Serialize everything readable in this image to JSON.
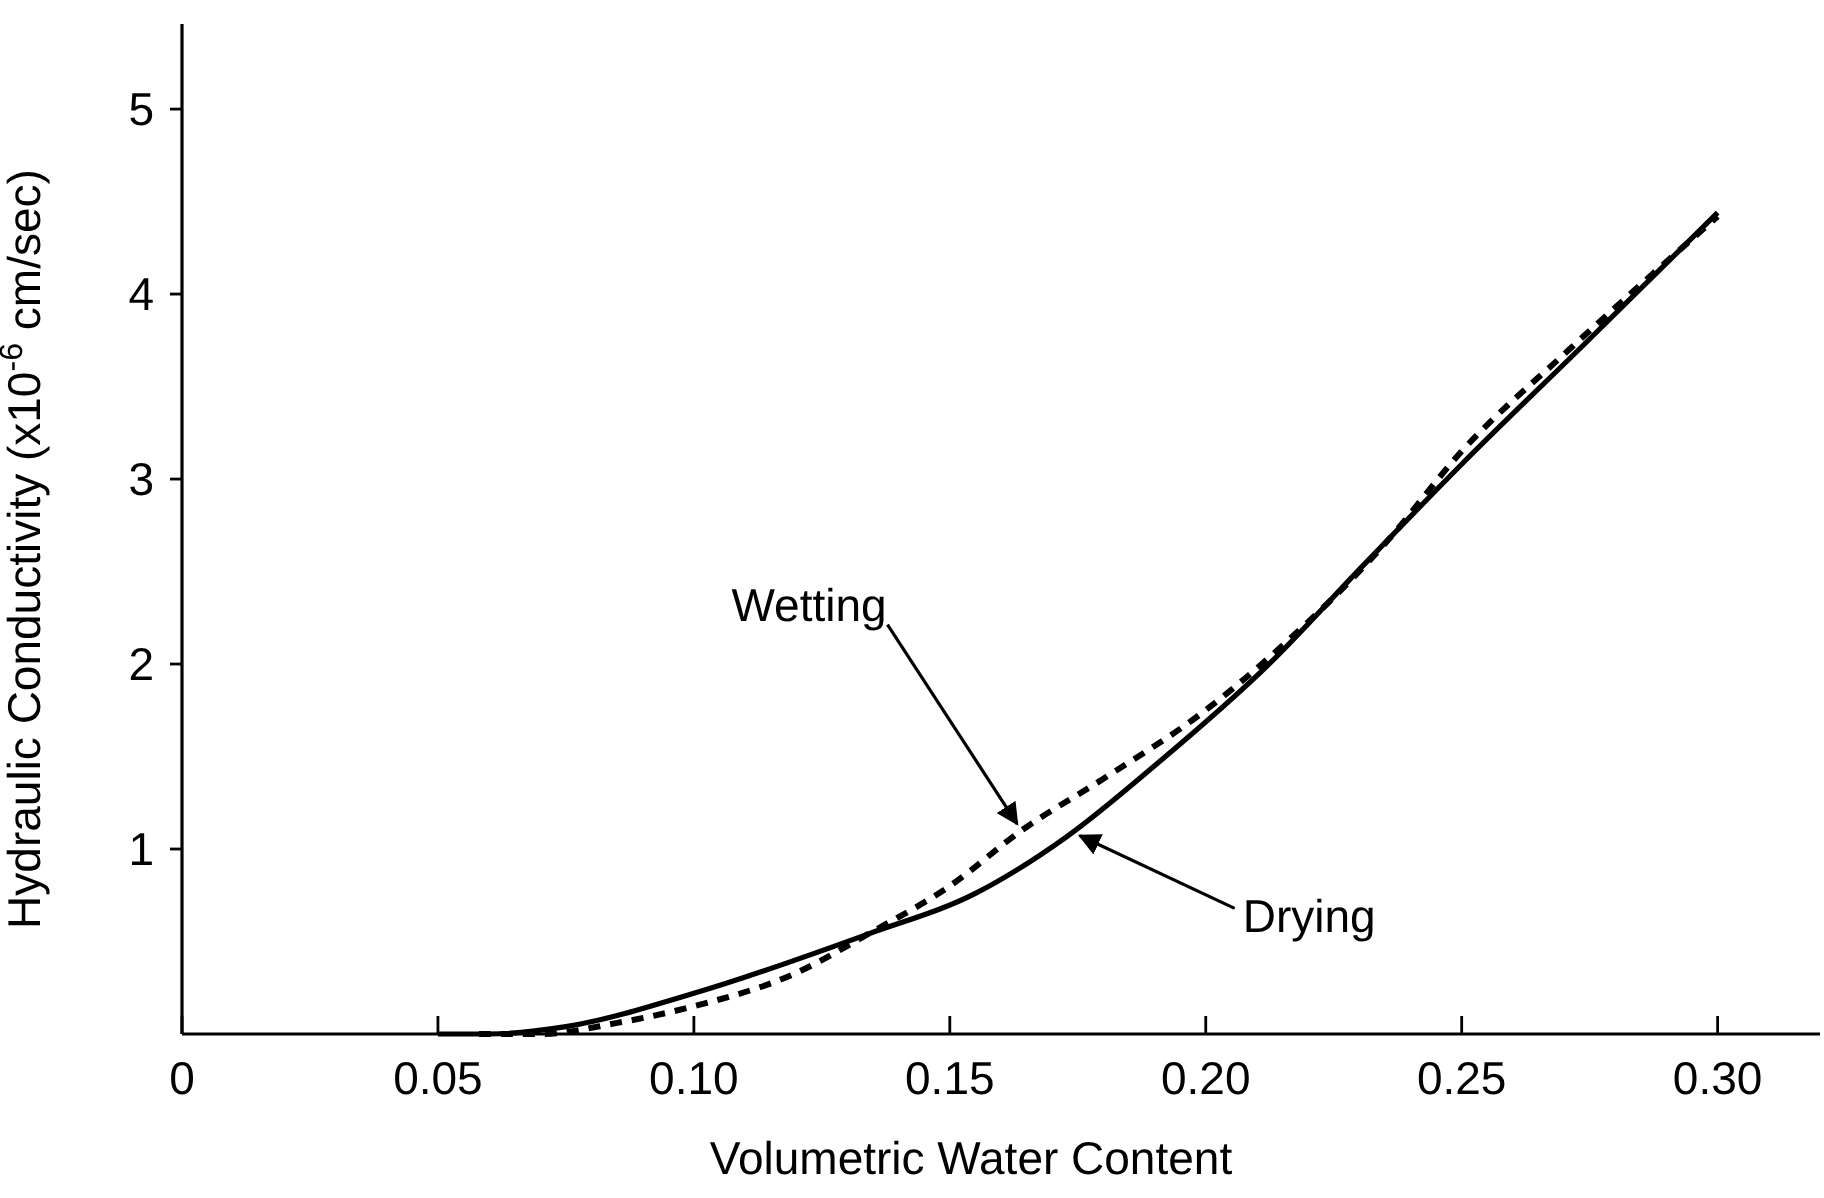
{
  "chart_data": {
    "type": "line",
    "xlabel": "Volumetric Water Content",
    "ylabel": "Hydraulic Conductivity (x10$^{-6}$ cm/sec)",
    "xlim": [
      0,
      0.32
    ],
    "ylim": [
      0,
      5.46
    ],
    "xticks": [
      {
        "value": 0,
        "label": "0"
      },
      {
        "value": 0.05,
        "label": "0.05"
      },
      {
        "value": 0.1,
        "label": "0.10"
      },
      {
        "value": 0.15,
        "label": "0.15"
      },
      {
        "value": 0.2,
        "label": "0.20"
      },
      {
        "value": 0.25,
        "label": "0.25"
      },
      {
        "value": 0.3,
        "label": "0.30"
      }
    ],
    "yticks": [
      1,
      2,
      3,
      4,
      5
    ],
    "grid": false,
    "marker": "none",
    "series": [
      {
        "color": "#000000",
        "line_style": "solid",
        "x": [
          0.05,
          0.06,
          0.075,
          0.1,
          0.134,
          0.155,
          0.173,
          0.19,
          0.212,
          0.231,
          0.25,
          0.274,
          0.3
        ],
        "values": [
          0,
          0,
          0.04,
          0.22,
          0.54,
          0.76,
          1.07,
          1.45,
          1.99,
          2.54,
          3.08,
          3.73,
          4.44
        ]
      },
      {
        "color": "#000000",
        "line_style": "dashed",
        "x": [
          0.058,
          0.07,
          0.085,
          0.1,
          0.12,
          0.134,
          0.15,
          0.164,
          0.18,
          0.199,
          0.215,
          0.235,
          0.25,
          0.271,
          0.3
        ],
        "values": [
          0,
          0,
          0.06,
          0.15,
          0.33,
          0.54,
          0.8,
          1.1,
          1.38,
          1.73,
          2.1,
          2.65,
          3.15,
          3.7,
          4.42
        ]
      }
    ],
    "annotations": [
      {
        "text": "Wetting",
        "x": 0.164,
        "y": 1.1
      },
      {
        "text": "Drying",
        "x": 0.174,
        "y": 1.09
      }
    ]
  }
}
